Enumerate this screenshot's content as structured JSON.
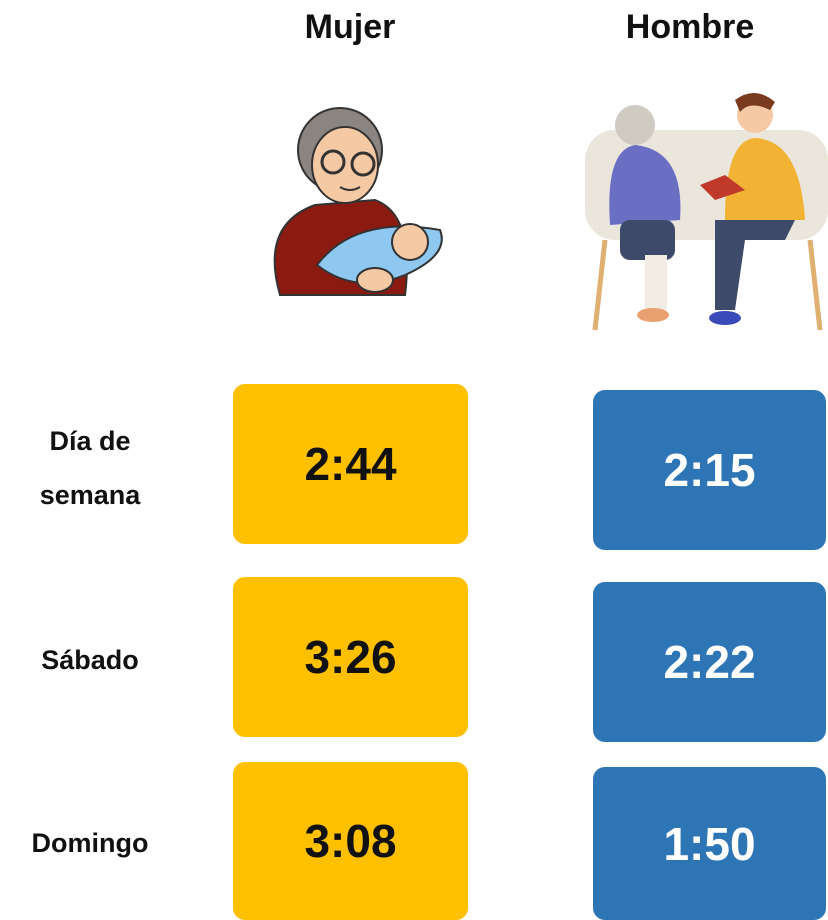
{
  "header": {
    "columns": [
      "Mujer",
      "Hombre"
    ]
  },
  "table": {
    "rows": [
      {
        "label": "Día de\nsemana",
        "values": [
          "2:44",
          "2:15"
        ]
      },
      {
        "label": "Sábado",
        "values": [
          "3:26",
          "2:22"
        ]
      },
      {
        "label": "Domingo",
        "values": [
          "3:08",
          "1:50"
        ]
      }
    ]
  }
}
